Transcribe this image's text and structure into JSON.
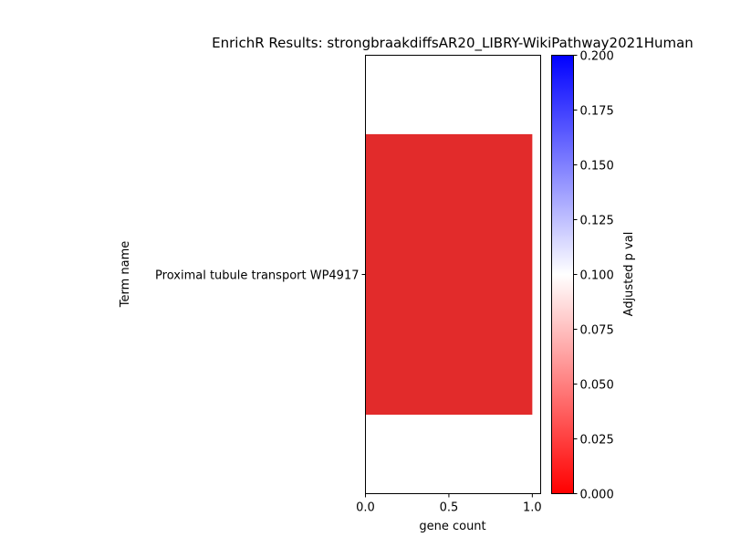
{
  "chart_data": {
    "type": "bar",
    "orientation": "horizontal",
    "title": "EnrichR Results: strongbraakdiffsAR20_LIBRY-WikiPathway2021Human",
    "xlabel": "gene count",
    "ylabel": "Term name",
    "xlim": [
      0,
      1.05
    ],
    "x_ticks": [
      "0.0",
      "0.5",
      "1.0"
    ],
    "categories": [
      "Proximal tubule transport WP4917"
    ],
    "values": [
      1
    ],
    "bar_colors": [
      "#e22b2b"
    ],
    "colorbar": {
      "label": "Adjusted p val",
      "range": [
        0,
        0.2
      ],
      "ticks": [
        "0.000",
        "0.025",
        "0.050",
        "0.075",
        "0.100",
        "0.125",
        "0.150",
        "0.175",
        "0.200"
      ],
      "colors": [
        "#ff0000",
        "#ffffff",
        "#0000ff"
      ]
    },
    "grid": false
  }
}
